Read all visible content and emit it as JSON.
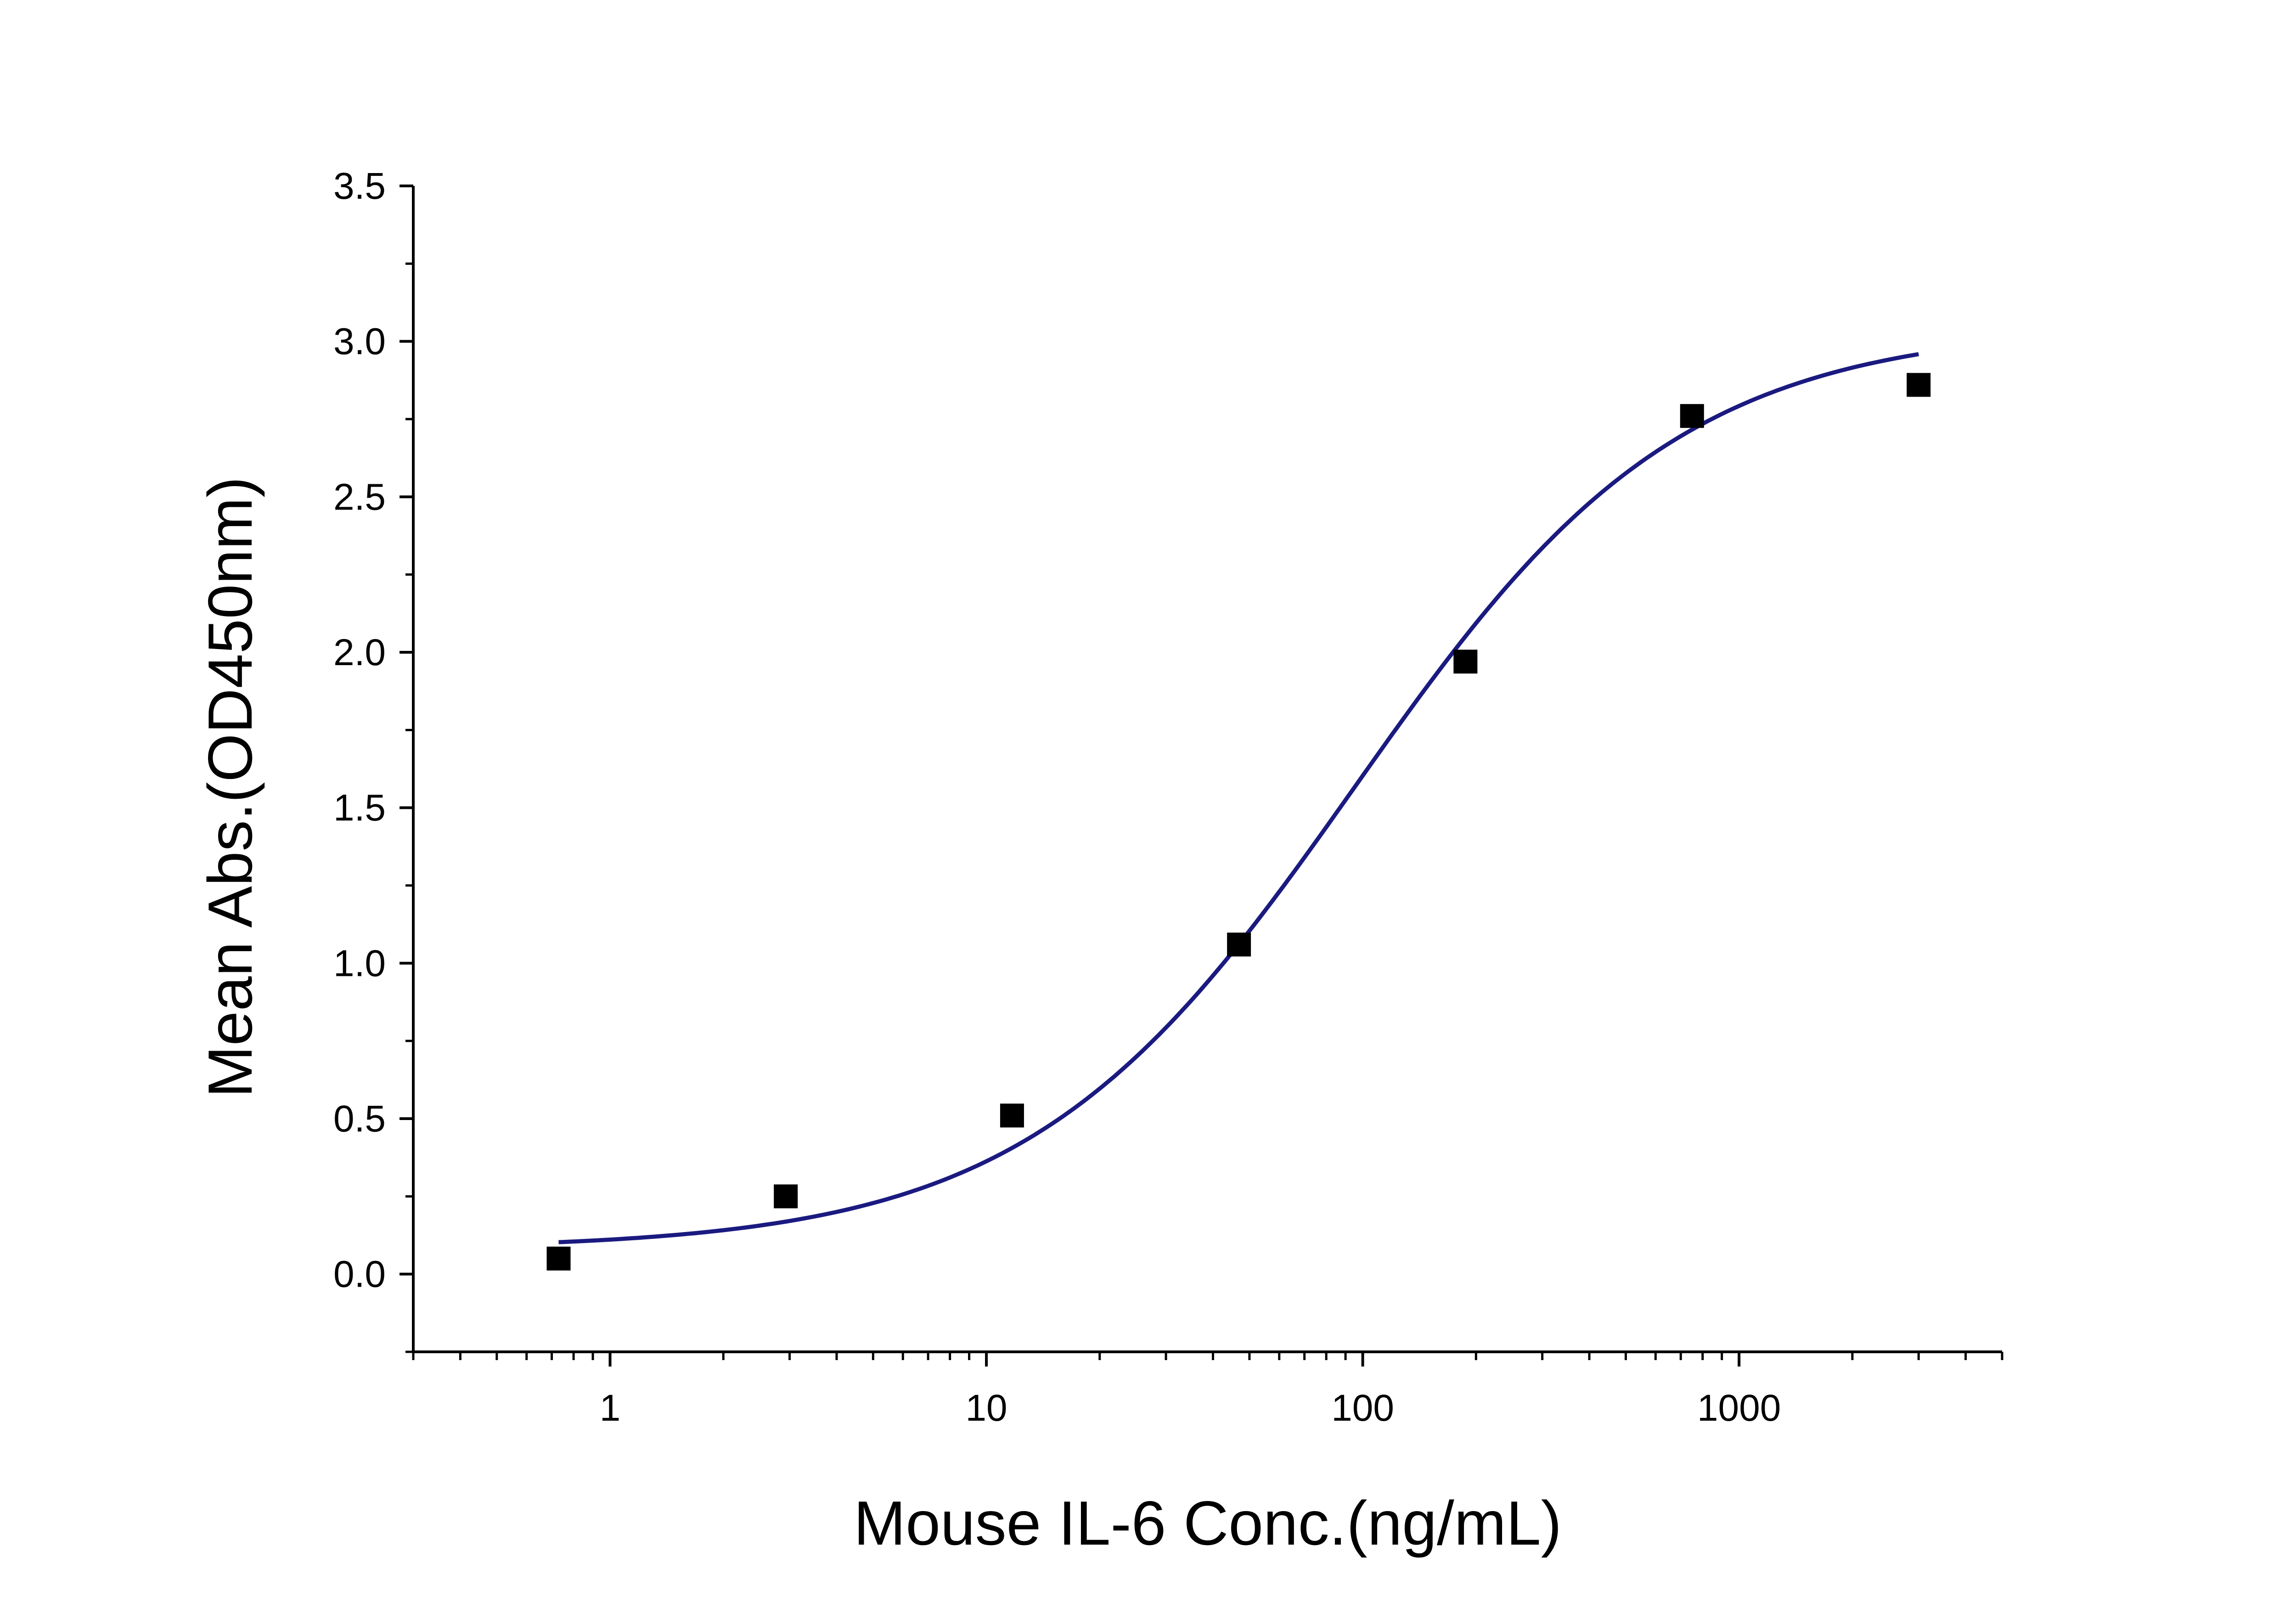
{
  "chart_data": {
    "type": "scatter",
    "title": "",
    "xlabel": "Mouse IL-6 Conc.(ng/mL)",
    "ylabel": "Mean Abs.(OD450nm)",
    "x_scale": "log",
    "xlim": [
      0.3,
      5000
    ],
    "ylim": [
      -0.25,
      3.5
    ],
    "x_ticks": [
      1,
      10,
      100,
      1000
    ],
    "x_tick_labels": [
      "1",
      "10",
      "100",
      "1000"
    ],
    "y_ticks": [
      0.0,
      0.5,
      1.0,
      1.5,
      2.0,
      2.5,
      3.0,
      3.5
    ],
    "y_tick_labels": [
      "0.0",
      "0.5",
      "1.0",
      "1.5",
      "2.0",
      "2.5",
      "3.0",
      "3.5"
    ],
    "grid": false,
    "legend": "none",
    "series": [
      {
        "kind": "points",
        "marker": "square",
        "color": "#000000",
        "points": [
          {
            "x": 0.73,
            "y": 0.05
          },
          {
            "x": 2.93,
            "y": 0.25
          },
          {
            "x": 11.7,
            "y": 0.51
          },
          {
            "x": 46.9,
            "y": 1.06
          },
          {
            "x": 187.5,
            "y": 1.97
          },
          {
            "x": 750,
            "y": 2.76
          },
          {
            "x": 3000,
            "y": 2.86
          }
        ]
      },
      {
        "kind": "fit-curve",
        "color": "#1a1a80",
        "model": "4PL",
        "params": {
          "bottom": 0.08,
          "top": 3.05,
          "ec50": 95,
          "hill": 1.0
        },
        "x_range": [
          0.73,
          3000
        ]
      }
    ]
  }
}
